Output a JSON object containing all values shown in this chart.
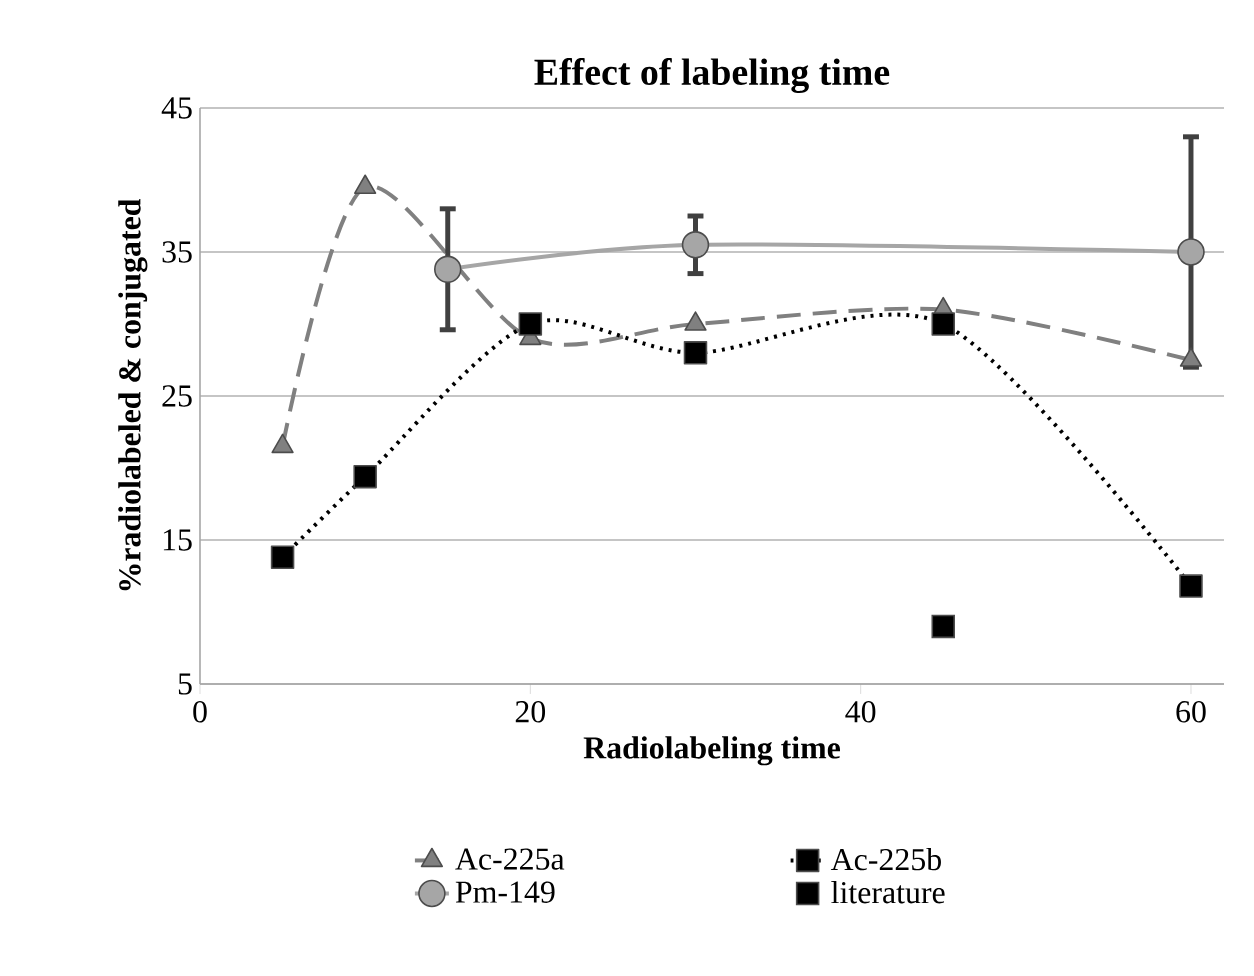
{
  "chart_data": {
    "type": "line",
    "title": "Effect of labeling time",
    "xlabel": "Radiolabeling time",
    "ylabel": "%radiolabeled  & conjugated",
    "xlim": [
      0,
      62
    ],
    "ylim": [
      5,
      45
    ],
    "xticks": [
      0,
      20,
      40,
      60
    ],
    "yticks": [
      5,
      15,
      25,
      35,
      45
    ],
    "grid": "y",
    "legend": "bottom",
    "series": [
      {
        "name": "Ac-225a",
        "color": "#808080",
        "marker": "triangle",
        "line_style": "dashed",
        "x": [
          5,
          10,
          20,
          30,
          45,
          60
        ],
        "values": [
          21.5,
          39.5,
          29,
          30,
          31,
          27.5
        ]
      },
      {
        "name": "Ac-225b",
        "color": "#000000",
        "marker": "square",
        "line_style": "dotted",
        "x": [
          5,
          10,
          20,
          30,
          45,
          60
        ],
        "values": [
          13.8,
          19.4,
          30,
          28,
          30,
          11.8
        ]
      },
      {
        "name": "Pm-149",
        "color": "#a6a6a6",
        "marker": "circle",
        "line_style": "solid",
        "x": [
          15,
          30,
          60
        ],
        "values": [
          33.8,
          35.5,
          35
        ],
        "errors": [
          4.2,
          2,
          8
        ]
      },
      {
        "name": "literature",
        "type": "scatter",
        "color": "#000000",
        "marker": "square",
        "x": [
          45
        ],
        "values": [
          9
        ]
      }
    ]
  }
}
